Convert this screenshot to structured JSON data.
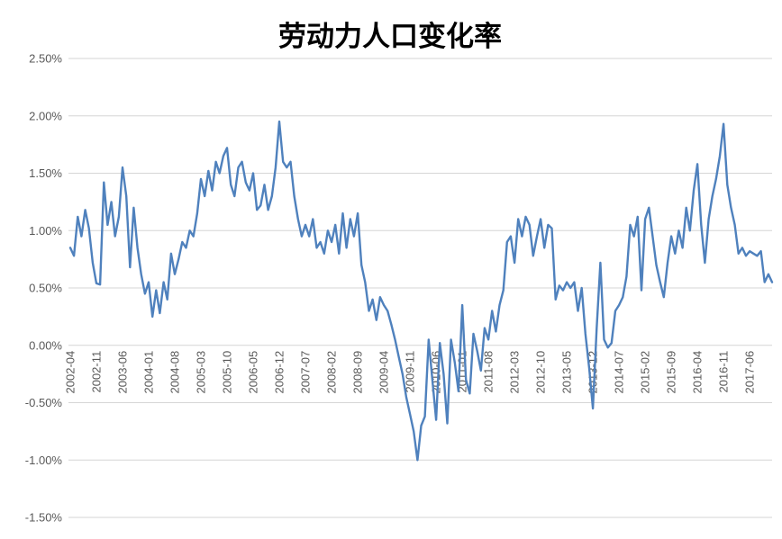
{
  "chart_data": {
    "type": "line",
    "title": "劳动力人口变化率",
    "series_color": "#4F81BD",
    "grid_color": "#D6D6D6",
    "label_color": "#595959",
    "background_color": "#FFFFFF",
    "grid": true,
    "legend": "none",
    "ylim": [
      -1.5,
      2.5
    ],
    "y_ticks": [
      "2.50%",
      "2.00%",
      "1.50%",
      "1.00%",
      "0.50%",
      "0.00%",
      "-0.50%",
      "-1.00%",
      "-1.50%"
    ],
    "y_tick_values": [
      2.5,
      2.0,
      1.5,
      1.0,
      0.5,
      0.0,
      -0.5,
      -1.0,
      -1.5
    ],
    "x_range": [
      "2002-04",
      "2017-12"
    ],
    "x_tick_interval": 7,
    "x_tick_labels": [
      "2002-04",
      "2002-11",
      "2003-06",
      "2004-01",
      "2004-08",
      "2005-03",
      "2005-10",
      "2006-05",
      "2006-12",
      "2007-07",
      "2008-02",
      "2008-09",
      "2009-04",
      "2009-11",
      "2010-06",
      "2011-01",
      "2011-08",
      "2012-03",
      "2012-10",
      "2013-05",
      "2013-12",
      "2014-07",
      "2015-02",
      "2015-09",
      "2016-04",
      "2016-11",
      "2017-06"
    ],
    "values": [
      0.85,
      0.78,
      1.12,
      0.95,
      1.18,
      1.02,
      0.72,
      0.54,
      0.53,
      1.42,
      1.05,
      1.25,
      0.95,
      1.12,
      1.55,
      1.3,
      0.68,
      1.2,
      0.85,
      0.62,
      0.45,
      0.55,
      0.25,
      0.48,
      0.28,
      0.55,
      0.4,
      0.8,
      0.62,
      0.75,
      0.9,
      0.85,
      1.0,
      0.95,
      1.15,
      1.45,
      1.3,
      1.52,
      1.35,
      1.6,
      1.5,
      1.65,
      1.72,
      1.4,
      1.3,
      1.55,
      1.6,
      1.42,
      1.35,
      1.5,
      1.18,
      1.22,
      1.4,
      1.18,
      1.3,
      1.55,
      1.95,
      1.6,
      1.55,
      1.6,
      1.3,
      1.1,
      0.95,
      1.05,
      0.95,
      1.1,
      0.85,
      0.9,
      0.8,
      1.0,
      0.9,
      1.05,
      0.8,
      1.15,
      0.85,
      1.1,
      0.95,
      1.15,
      0.7,
      0.55,
      0.3,
      0.4,
      0.22,
      0.42,
      0.35,
      0.3,
      0.18,
      0.05,
      -0.1,
      -0.25,
      -0.45,
      -0.6,
      -0.75,
      -1.0,
      -0.7,
      -0.62,
      0.05,
      -0.3,
      -0.65,
      0.02,
      -0.25,
      -0.68,
      0.05,
      -0.15,
      -0.4,
      0.35,
      -0.3,
      -0.42,
      0.1,
      -0.05,
      -0.22,
      0.15,
      0.05,
      0.3,
      0.12,
      0.35,
      0.48,
      0.9,
      0.95,
      0.72,
      1.1,
      0.95,
      1.12,
      1.05,
      0.78,
      0.95,
      1.1,
      0.85,
      1.05,
      1.02,
      0.4,
      0.52,
      0.48,
      0.55,
      0.5,
      0.55,
      0.3,
      0.5,
      0.1,
      -0.2,
      -0.55,
      0.15,
      0.72,
      0.05,
      -0.02,
      0.02,
      0.3,
      0.35,
      0.42,
      0.6,
      1.05,
      0.95,
      1.12,
      0.48,
      1.1,
      1.2,
      0.95,
      0.7,
      0.55,
      0.42,
      0.72,
      0.95,
      0.8,
      1.0,
      0.85,
      1.2,
      1.0,
      1.35,
      1.58,
      1.05,
      0.72,
      1.1,
      1.3,
      1.45,
      1.65,
      1.93,
      1.4,
      1.2,
      1.05,
      0.8,
      0.85,
      0.78,
      0.82,
      0.8,
      0.78,
      0.82,
      0.55,
      0.62,
      0.55
    ]
  }
}
